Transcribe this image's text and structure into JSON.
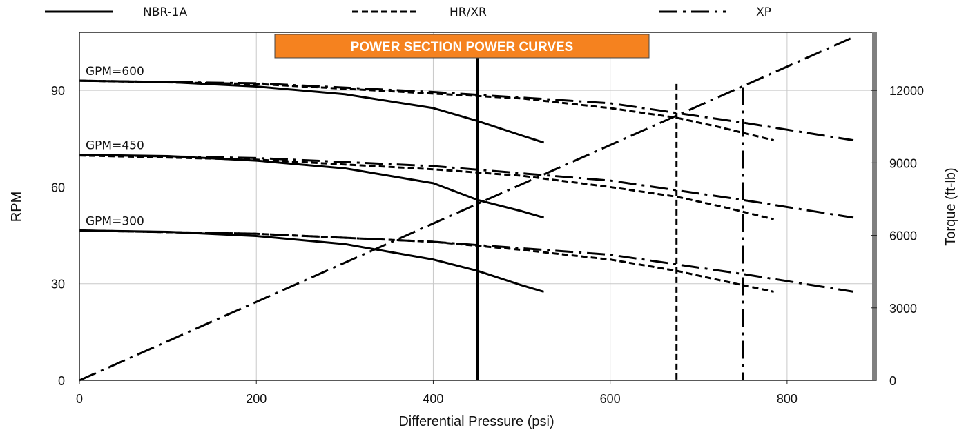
{
  "chart_data": {
    "type": "line",
    "title": "POWER SECTION POWER CURVES",
    "title_color": "#F5821F",
    "xlabel": "Differential Pressure (psi)",
    "ylabel": "RPM",
    "y2label": "Torque (ft-lb)",
    "xlim": [
      0,
      900
    ],
    "ylim": [
      0,
      108
    ],
    "y2lim": [
      0,
      14400
    ],
    "x_ticks": [
      0,
      200,
      400,
      600,
      800
    ],
    "y_ticks": [
      0,
      30,
      60,
      90
    ],
    "y2_ticks": [
      0,
      3000,
      6000,
      9000,
      12000
    ],
    "grid": true,
    "legend_position": "top",
    "legend": [
      {
        "name": "NBR-1A",
        "style": "solid"
      },
      {
        "name": "HR/XR",
        "style": "short-dash"
      },
      {
        "name": "XP",
        "style": "long-dash-dot"
      }
    ],
    "gpm_labels": [
      {
        "text": "GPM=600",
        "y": 93
      },
      {
        "text": "GPM=450",
        "y": 70
      },
      {
        "text": "GPM=300",
        "y": 46.5
      }
    ],
    "series": [
      {
        "style": "solid",
        "values": [
          [
            0,
            93
          ],
          [
            100,
            92.6
          ],
          [
            200,
            91.2
          ],
          [
            300,
            88.8
          ],
          [
            400,
            84.5
          ],
          [
            450,
            80.5
          ],
          [
            500,
            76
          ],
          [
            525,
            73.8
          ]
        ]
      },
      {
        "style": "solid",
        "values": [
          [
            0,
            70
          ],
          [
            100,
            69.6
          ],
          [
            200,
            68.2
          ],
          [
            300,
            65.8
          ],
          [
            400,
            61.2
          ],
          [
            450,
            56
          ],
          [
            500,
            52.5
          ],
          [
            525,
            50.5
          ]
        ]
      },
      {
        "style": "solid",
        "values": [
          [
            0,
            46.5
          ],
          [
            100,
            46.1
          ],
          [
            200,
            44.8
          ],
          [
            300,
            42.3
          ],
          [
            400,
            37.5
          ],
          [
            450,
            34
          ],
          [
            500,
            29.5
          ],
          [
            525,
            27.5
          ]
        ]
      },
      {
        "style": "short-dash",
        "values": [
          [
            0,
            93
          ],
          [
            200,
            92
          ],
          [
            400,
            89
          ],
          [
            500,
            87.5
          ],
          [
            600,
            84.5
          ],
          [
            675,
            81.5
          ],
          [
            725,
            78.5
          ],
          [
            785,
            74.5
          ]
        ]
      },
      {
        "style": "short-dash",
        "values": [
          [
            0,
            69.8
          ],
          [
            200,
            68.5
          ],
          [
            400,
            65.5
          ],
          [
            500,
            63.5
          ],
          [
            600,
            60
          ],
          [
            675,
            57
          ],
          [
            725,
            54
          ],
          [
            785,
            50
          ]
        ]
      },
      {
        "style": "short-dash",
        "values": [
          [
            0,
            46.5
          ],
          [
            200,
            45.5
          ],
          [
            400,
            43
          ],
          [
            500,
            40.5
          ],
          [
            600,
            37.5
          ],
          [
            675,
            34
          ],
          [
            725,
            31
          ],
          [
            785,
            27.5
          ]
        ]
      },
      {
        "style": "long-dash-dot",
        "values": [
          [
            0,
            93
          ],
          [
            200,
            92.2
          ],
          [
            400,
            89.5
          ],
          [
            600,
            86
          ],
          [
            750,
            80
          ],
          [
            875,
            74.5
          ]
        ]
      },
      {
        "style": "long-dash-dot",
        "values": [
          [
            0,
            70
          ],
          [
            200,
            69
          ],
          [
            400,
            66.5
          ],
          [
            600,
            62
          ],
          [
            750,
            56
          ],
          [
            875,
            50.5
          ]
        ]
      },
      {
        "style": "long-dash-dot",
        "values": [
          [
            0,
            46.5
          ],
          [
            200,
            45.5
          ],
          [
            400,
            43
          ],
          [
            600,
            39
          ],
          [
            750,
            33
          ],
          [
            875,
            27.5
          ]
        ]
      },
      {
        "style": "long-dash-dot",
        "axis": "y2",
        "name": "Torque",
        "values": [
          [
            0,
            0
          ],
          [
            875,
            14200
          ]
        ]
      }
    ],
    "max_pressure_lines": [
      {
        "style": "solid",
        "x": 450,
        "y_top": 103
      },
      {
        "style": "short-dash",
        "x": 675,
        "y_top": 92
      },
      {
        "style": "long-dash-dot",
        "x": 750,
        "y_top": 91
      }
    ]
  }
}
